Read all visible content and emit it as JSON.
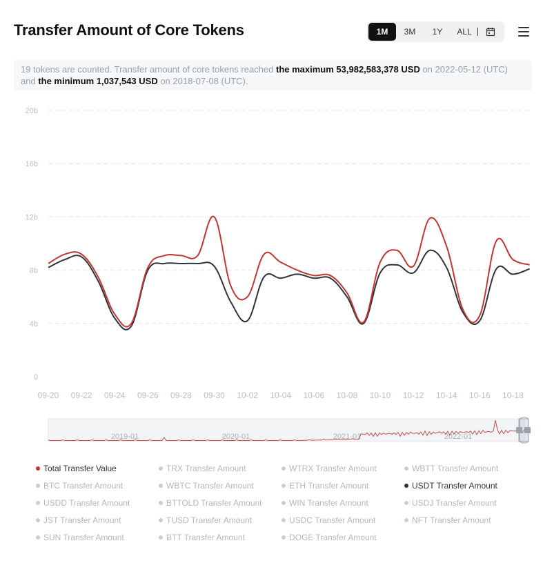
{
  "header": {
    "title": "Transfer Amount of Core Tokens",
    "ranges": [
      "1M",
      "3M",
      "1Y",
      "ALL"
    ],
    "active_range": "1M"
  },
  "summary": {
    "prefix": "19 tokens are counted. Transfer amount of core tokens reached ",
    "max_label": "the maximum 53,982,583,378 USD",
    "max_date": " on 2022-05-12 (UTC) and ",
    "min_label": "the minimum 1,037,543 USD",
    "min_date": " on 2018-07-08 (UTC)."
  },
  "colors": {
    "total": "#c23531",
    "usdt": "#2f3337",
    "grid": "#e6e6e6",
    "axis_text": "#b8bec4"
  },
  "chart_data": {
    "type": "line",
    "title": "",
    "xlabel": "",
    "ylabel": "",
    "ylim": [
      0,
      20000000000
    ],
    "y_ticks": [
      "0",
      "4b",
      "8b",
      "12b",
      "16b",
      "20b"
    ],
    "x_tick_labels": [
      "09-20",
      "09-22",
      "09-24",
      "09-26",
      "09-28",
      "09-30",
      "10-02",
      "10-04",
      "10-06",
      "10-08",
      "10-10",
      "10-12",
      "10-14",
      "10-16",
      "10-18"
    ],
    "x": [
      "09-20",
      "09-21",
      "09-22",
      "09-23",
      "09-24",
      "09-25",
      "09-26",
      "09-27",
      "09-28",
      "09-29",
      "09-30",
      "10-01",
      "10-02",
      "10-03",
      "10-04",
      "10-05",
      "10-06",
      "10-07",
      "10-08",
      "10-09",
      "10-10",
      "10-11",
      "10-12",
      "10-13",
      "10-14",
      "10-15",
      "10-16",
      "10-17",
      "10-18",
      "10-19"
    ],
    "series": [
      {
        "name": "Total Transfer Value",
        "values": [
          8500000000,
          9200000000,
          9200000000,
          7500000000,
          4700000000,
          4000000000,
          8200000000,
          9100000000,
          9100000000,
          9100000000,
          12000000000,
          6800000000,
          6000000000,
          9200000000,
          8600000000,
          8000000000,
          7600000000,
          7600000000,
          6300000000,
          4100000000,
          8600000000,
          9500000000,
          8300000000,
          11900000000,
          9800000000,
          5000000000,
          4600000000,
          10200000000,
          8800000000,
          8400000000
        ]
      },
      {
        "name": "USDT Transfer Amount",
        "values": [
          8200000000,
          8800000000,
          9000000000,
          7200000000,
          4400000000,
          3800000000,
          8000000000,
          8500000000,
          8500000000,
          8500000000,
          8300000000,
          5600000000,
          4200000000,
          7500000000,
          7400000000,
          7700000000,
          7400000000,
          7400000000,
          6000000000,
          4000000000,
          7800000000,
          8400000000,
          7800000000,
          9500000000,
          8200000000,
          4800000000,
          4200000000,
          8100000000,
          7700000000,
          8100000000
        ]
      }
    ],
    "zoom_slider": {
      "labels": [
        "2019-01",
        "2020-01",
        "2021-01",
        "2022-01"
      ]
    }
  },
  "legend": [
    {
      "label": "Total Transfer Value",
      "on": true,
      "color": "#c23531"
    },
    {
      "label": "TRX Transfer Amount",
      "on": false
    },
    {
      "label": "WTRX Transfer Amount",
      "on": false
    },
    {
      "label": "WBTT Transfer Amount",
      "on": false
    },
    {
      "label": "BTC Transfer Amount",
      "on": false
    },
    {
      "label": "WBTC Transfer Amount",
      "on": false
    },
    {
      "label": "ETH Transfer Amount",
      "on": false
    },
    {
      "label": "USDT Transfer Amount",
      "on": true,
      "color": "#2f3337"
    },
    {
      "label": "USDD Transfer Amount",
      "on": false
    },
    {
      "label": "BTTOLD Transfer Amount",
      "on": false
    },
    {
      "label": "WIN Transfer Amount",
      "on": false
    },
    {
      "label": "USDJ Transfer Amount",
      "on": false
    },
    {
      "label": "JST Transfer Amount",
      "on": false
    },
    {
      "label": "TUSD Transfer Amount",
      "on": false
    },
    {
      "label": "USDC Transfer Amount",
      "on": false
    },
    {
      "label": "NFT Transfer Amount",
      "on": false
    },
    {
      "label": "SUN Transfer Amount",
      "on": false
    },
    {
      "label": "BTT Transfer Amount",
      "on": false
    },
    {
      "label": "DOGE Transfer Amount",
      "on": false
    }
  ]
}
